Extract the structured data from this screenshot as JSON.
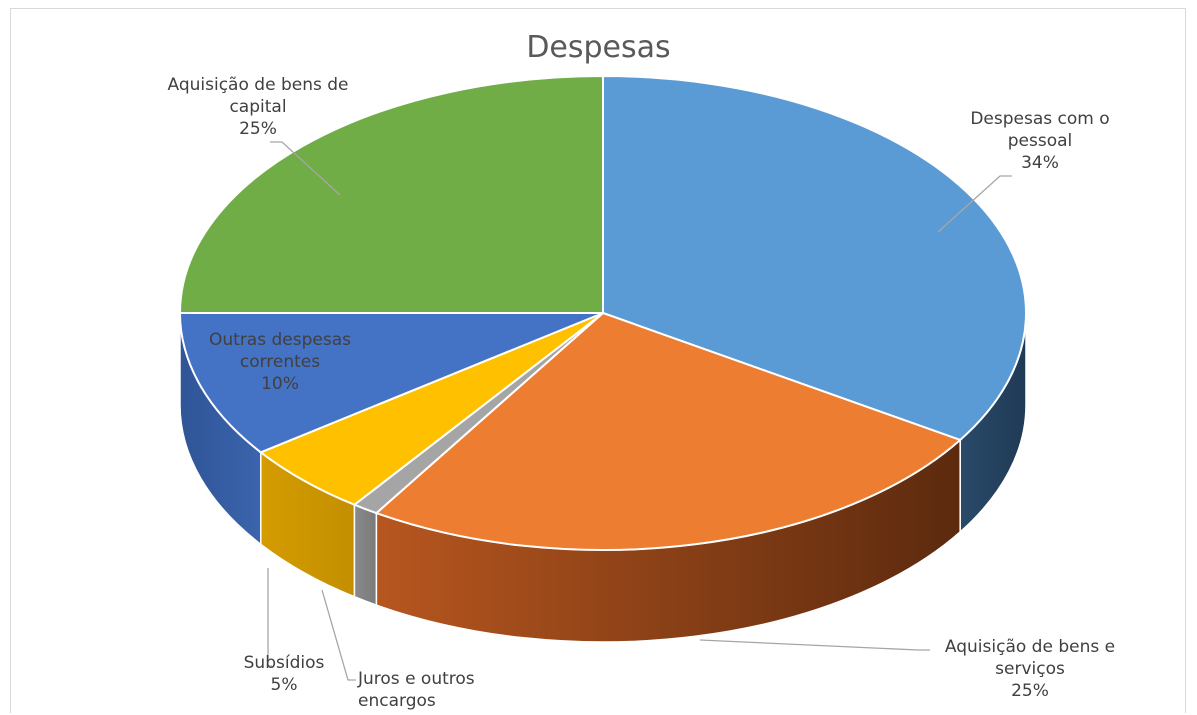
{
  "chart_data": {
    "type": "pie",
    "title": "Despesas",
    "slices": [
      {
        "label_lines": [
          "Despesas com o",
          "pessoal"
        ],
        "percent_label": "34%",
        "value": 34,
        "color": "#5b9bd5"
      },
      {
        "label_lines": [
          "Aquisição de bens e",
          "serviços"
        ],
        "percent_label": "25%",
        "value": 25,
        "color": "#ed7d31"
      },
      {
        "label_lines": [
          "Juros e outros",
          "encargos"
        ],
        "percent_label": "1%",
        "value": 1,
        "color": "#a5a5a5"
      },
      {
        "label_lines": [
          "Subsídios"
        ],
        "percent_label": "5%",
        "value": 5,
        "color": "#ffc000"
      },
      {
        "label_lines": [
          "Outras despesas",
          "correntes"
        ],
        "percent_label": "10%",
        "value": 10,
        "color": "#4472c4"
      },
      {
        "label_lines": [
          "Aquisição de bens de",
          "capital"
        ],
        "percent_label": "25%",
        "value": 25,
        "color": "#70ad47"
      }
    ]
  }
}
